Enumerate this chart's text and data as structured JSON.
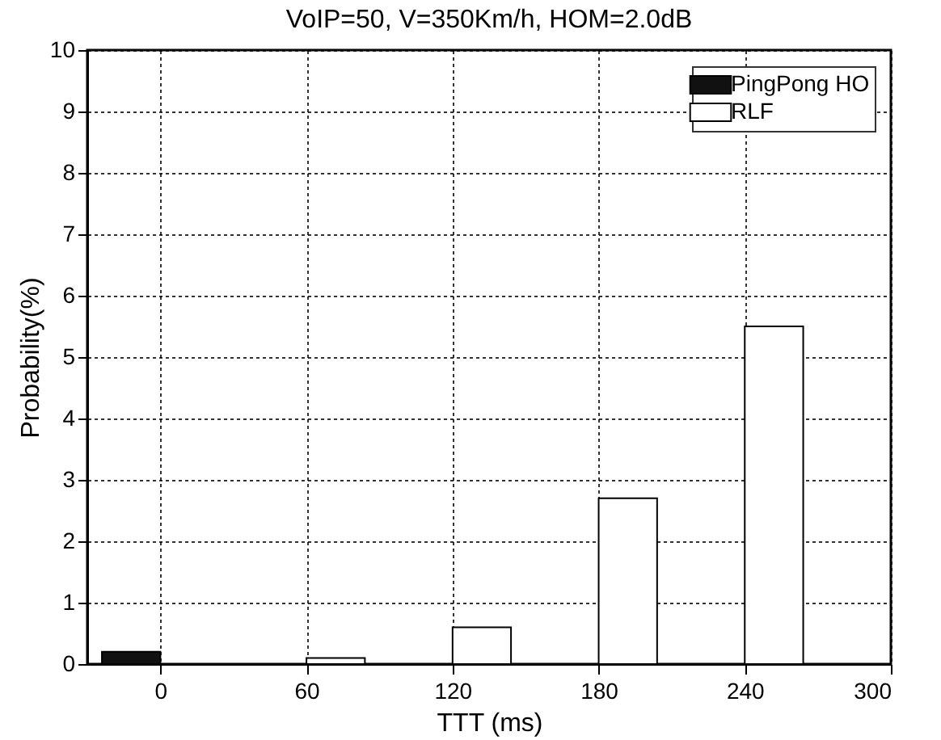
{
  "chart_data": {
    "type": "bar",
    "title": "VoIP=50, V=350Km/h, HOM=2.0dB",
    "xlabel": "TTT (ms)",
    "ylabel": "Probability(%)",
    "x": [
      0,
      60,
      120,
      180,
      240
    ],
    "series": [
      {
        "name": "PingPong HO",
        "color": "#111111",
        "values": [
          0.2,
          null,
          null,
          null,
          null
        ]
      },
      {
        "name": "RLF",
        "color": "#ffffff",
        "values": [
          null,
          0.1,
          0.6,
          2.7,
          5.5
        ]
      }
    ],
    "xlim": [
      -30,
      300
    ],
    "xticks": [
      0,
      60,
      120,
      180,
      240,
      300
    ],
    "ylim": [
      0,
      10
    ],
    "yticks": [
      0,
      1,
      2,
      3,
      4,
      5,
      6,
      7,
      8,
      9,
      10
    ],
    "grid": true,
    "legend": "top right"
  }
}
